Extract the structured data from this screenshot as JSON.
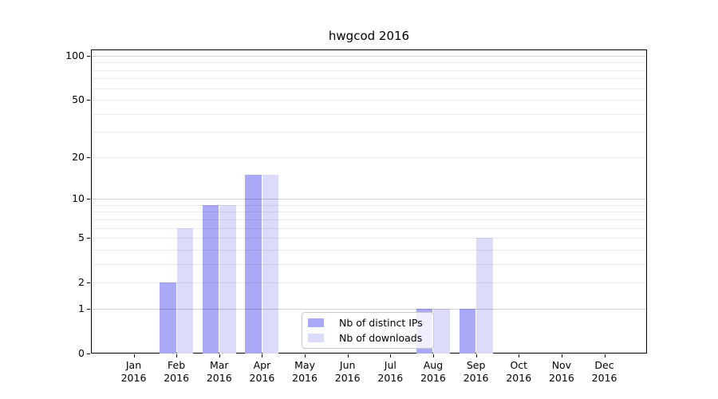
{
  "figure": {
    "title": "hwgcod 2016"
  },
  "chart_data": {
    "type": "bar",
    "title": "hwgcod 2016",
    "x_categories": [
      "Jan",
      "Feb",
      "Mar",
      "Apr",
      "May",
      "Jun",
      "Jul",
      "Aug",
      "Sep",
      "Oct",
      "Nov",
      "Dec"
    ],
    "x_year": "2016",
    "series": [
      {
        "name": "Nb of distinct IPs",
        "color": "#a9a9f8",
        "values": [
          0,
          2,
          9,
          15,
          0,
          0,
          0,
          1,
          1,
          0,
          0,
          0
        ]
      },
      {
        "name": "Nb of downloads",
        "color": "#dcdbfa",
        "values": [
          0,
          6,
          9,
          15,
          0,
          0,
          0,
          1,
          5,
          0,
          0,
          0
        ]
      }
    ],
    "y_axis": {
      "scale": "log1p",
      "tick_labels": [
        "0",
        "1",
        "2",
        "5",
        "10",
        "20",
        "50",
        "100"
      ],
      "tick_values": [
        0,
        1,
        2,
        5,
        10,
        20,
        50,
        100
      ],
      "range": [
        0,
        111
      ],
      "major_gridlines": [
        1,
        10,
        100
      ],
      "minor_gridlines": [
        2,
        3,
        4,
        5,
        6,
        7,
        8,
        9,
        20,
        30,
        40,
        50,
        60,
        70,
        80,
        90
      ]
    },
    "legend": {
      "position": "lower center",
      "entries": [
        "Nb of distinct IPs",
        "Nb of downloads"
      ]
    },
    "grid": true
  },
  "colors": {
    "major_grid": "rgba(0,0,0,0.18)",
    "minor_grid": "rgba(0,0,0,0.07)",
    "spine": "#000000",
    "legend_border": "#c9c9c9",
    "legend_background": "rgba(255,255,255,0.8)"
  }
}
